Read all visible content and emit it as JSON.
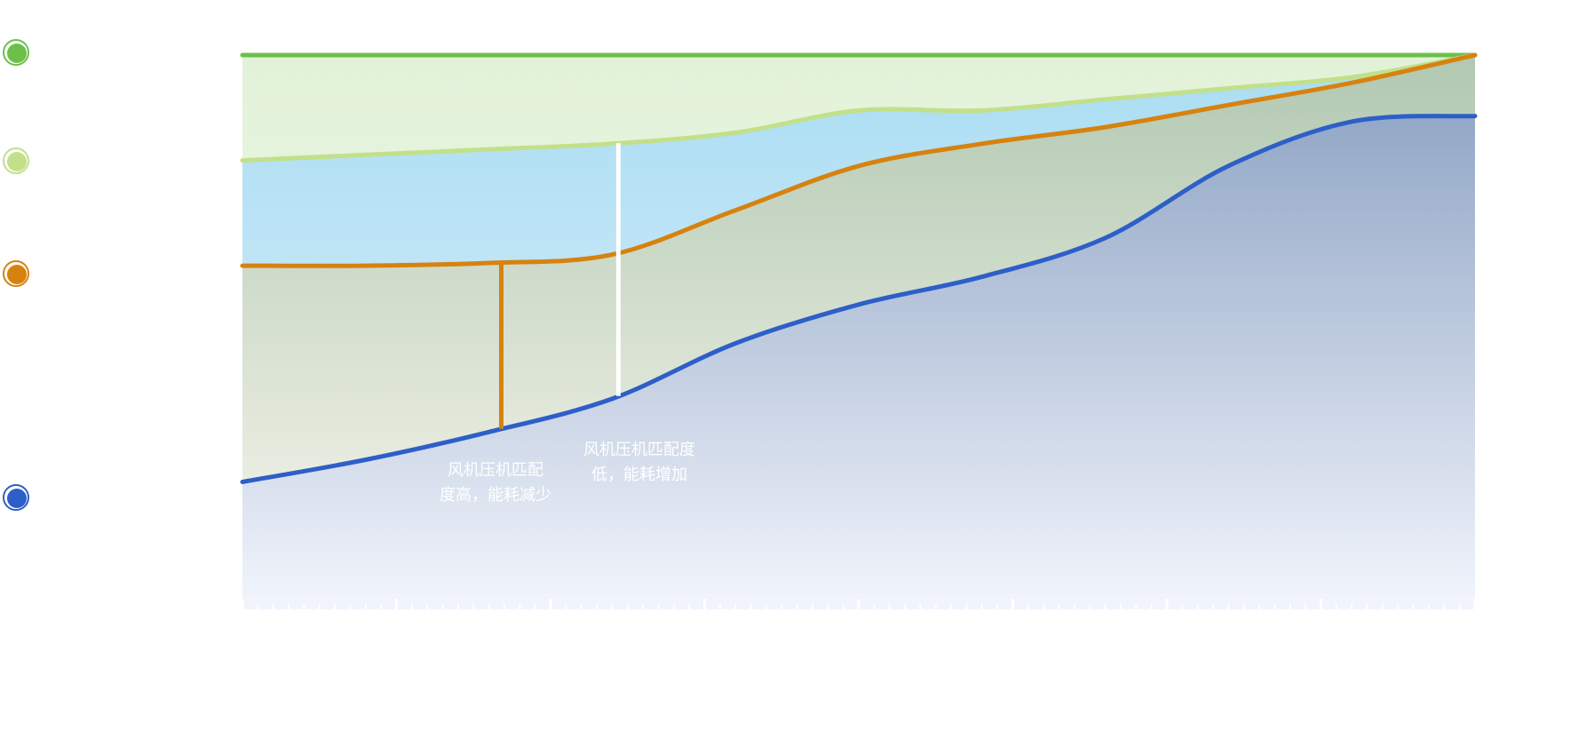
{
  "chart_data": {
    "type": "area",
    "x": [
      0,
      10,
      20,
      30,
      40,
      50,
      60,
      70,
      80,
      90,
      100
    ],
    "xlim": [
      0,
      100
    ],
    "ylim": [
      0,
      100
    ],
    "grid": false,
    "legend_position": "left",
    "series": [
      {
        "color": "#6cc04a",
        "fill_top": "#e2f2d8",
        "fill_bottom": "#f4faee",
        "values": [
          100,
          100,
          100,
          100,
          100,
          100,
          100,
          100,
          100,
          100,
          100
        ]
      },
      {
        "color": "#c2e08a",
        "fill_top": "#a9ddf2",
        "fill_bottom": "#e4f2fd",
        "values": [
          81,
          82,
          83,
          84,
          86,
          90,
          90,
          92,
          94,
          96,
          100
        ]
      },
      {
        "color": "#d7820f",
        "fill_top": "#b1c8b1",
        "fill_bottom": "#fbf8f0",
        "values": [
          62,
          62,
          62.5,
          64,
          72,
          80,
          84,
          87,
          91,
          95,
          100
        ]
      },
      {
        "color": "#2e5fc8",
        "fill_top": "#93a8c7",
        "fill_bottom": "#f2f5fc",
        "values": [
          23,
          27,
          32,
          38,
          48,
          55,
          60,
          67,
          80,
          88,
          89
        ]
      }
    ],
    "annotations": [
      {
        "text_lines": [
          "风机压机匹配",
          "度高，能耗减少"
        ],
        "x": 21
      },
      {
        "text_lines": [
          "风机压机匹配度",
          "低，能耗增加"
        ],
        "x": 30.5
      }
    ]
  }
}
